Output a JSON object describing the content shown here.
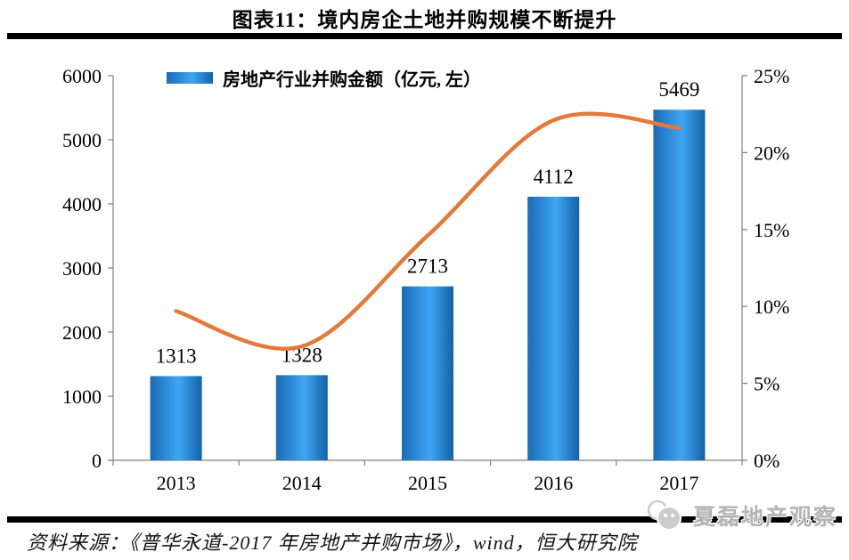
{
  "page": {
    "title": "图表11：境内房企土地并购规模不断提升",
    "source": "资料来源：《普华永道-2017 年房地产并购市场》，wind，恒大研究院",
    "watermark": "夏磊地产观察"
  },
  "legend": {
    "bar_series_label": "房地产行业并购金额（亿元, 左）"
  },
  "colors": {
    "rule": "#000000",
    "axis": "#808080",
    "bar_gradient": [
      "#1a6bb4",
      "#3fa5f2",
      "#1462a8"
    ],
    "line": "#e4793a",
    "label_text": "#000000",
    "watermark_gray": "#b4b4b4",
    "logo_gray": "#cccccc"
  },
  "chart_data": {
    "type": "combo",
    "categories": [
      "2013",
      "2014",
      "2015",
      "2016",
      "2017"
    ],
    "series": [
      {
        "name": "房地产行业并购金额（亿元, 左）",
        "type": "bar",
        "axis": "left",
        "values": [
          1313,
          1328,
          2713,
          4112,
          5469
        ],
        "data_labels": [
          "1313",
          "1328",
          "2713",
          "4112",
          "5469"
        ]
      },
      {
        "name": "",
        "type": "line",
        "axis": "right",
        "values": [
          9.7,
          7.4,
          14.6,
          22.1,
          21.6
        ],
        "values_estimated_from_pixels": true,
        "smoothed": true
      }
    ],
    "left_axis": {
      "min": 0,
      "max": 6000,
      "ticks": [
        "0",
        "1000",
        "2000",
        "3000",
        "4000",
        "5000",
        "6000"
      ]
    },
    "right_axis": {
      "min": 0,
      "max": 25,
      "ticks": [
        "0%",
        "5%",
        "10%",
        "15%",
        "20%",
        "25%"
      ]
    },
    "grid": false,
    "legend_position": "top-left-inside"
  }
}
